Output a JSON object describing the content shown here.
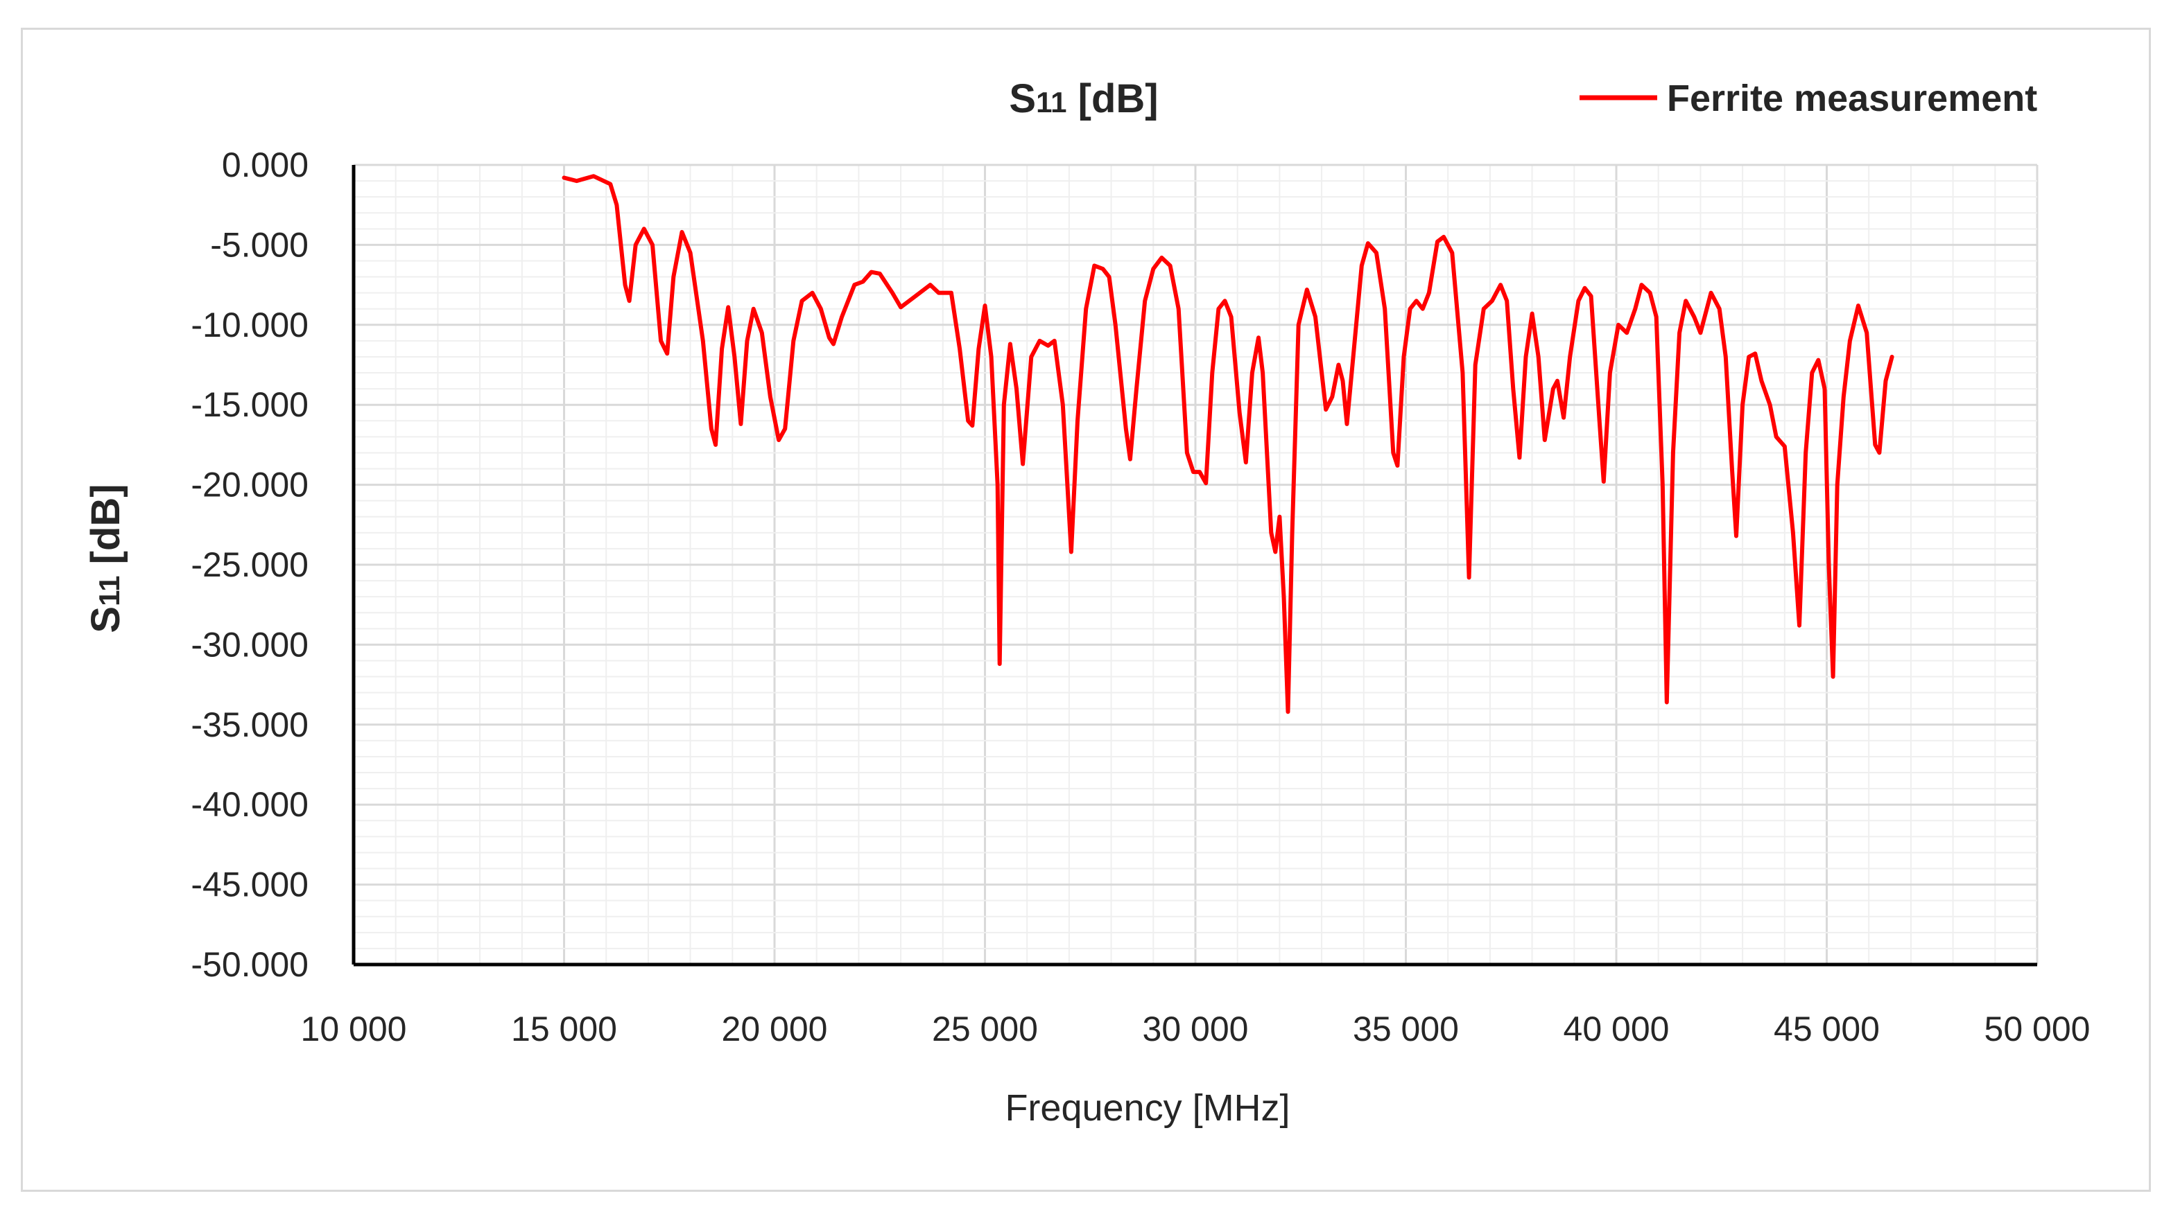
{
  "chart_data": {
    "type": "line",
    "title": "S11 [dB]",
    "title_main": "S",
    "title_sub": "11",
    "title_rest": " [dB]",
    "xlabel": "Frequency [MHz]",
    "ylabel": "S11 [dB]",
    "ylabel_main": "S",
    "ylabel_sub": "11",
    "ylabel_rest": " [dB]",
    "xlim": [
      10000,
      50000
    ],
    "ylim": [
      -50,
      0
    ],
    "x_ticks": [
      10000,
      15000,
      20000,
      25000,
      30000,
      35000,
      40000,
      45000,
      50000
    ],
    "x_tick_labels": [
      "10 000",
      "15 000",
      "20 000",
      "25 000",
      "30 000",
      "35 000",
      "40 000",
      "45 000",
      "50 000"
    ],
    "y_ticks": [
      0,
      -5,
      -10,
      -15,
      -20,
      -25,
      -30,
      -35,
      -40,
      -45,
      -50
    ],
    "y_tick_labels": [
      "0.000",
      "-5.000",
      "-10.000",
      "-15.000",
      "-20.000",
      "-25.000",
      "-30.000",
      "-35.000",
      "-40.000",
      "-45.000",
      "-50.000"
    ],
    "grid": true,
    "legend_position": "top-right",
    "series": [
      {
        "name": "Ferrite measurement",
        "color": "#ff0000",
        "points": [
          [
            15000,
            -0.8
          ],
          [
            15300,
            -1.0
          ],
          [
            15700,
            -0.7
          ],
          [
            16100,
            -1.2
          ],
          [
            16250,
            -2.5
          ],
          [
            16450,
            -7.5
          ],
          [
            16550,
            -8.5
          ],
          [
            16700,
            -5.0
          ],
          [
            16900,
            -4.0
          ],
          [
            17100,
            -5.0
          ],
          [
            17300,
            -11.0
          ],
          [
            17450,
            -11.8
          ],
          [
            17600,
            -7.0
          ],
          [
            17800,
            -4.2
          ],
          [
            18000,
            -5.5
          ],
          [
            18300,
            -11.0
          ],
          [
            18500,
            -16.5
          ],
          [
            18600,
            -17.5
          ],
          [
            18750,
            -11.5
          ],
          [
            18900,
            -8.9
          ],
          [
            19050,
            -12.0
          ],
          [
            19200,
            -16.2
          ],
          [
            19350,
            -11.0
          ],
          [
            19500,
            -9.0
          ],
          [
            19700,
            -10.5
          ],
          [
            19900,
            -14.5
          ],
          [
            20100,
            -17.2
          ],
          [
            20250,
            -16.5
          ],
          [
            20450,
            -11.0
          ],
          [
            20650,
            -8.5
          ],
          [
            20900,
            -8.0
          ],
          [
            21100,
            -9.0
          ],
          [
            21300,
            -10.8
          ],
          [
            21400,
            -11.2
          ],
          [
            21600,
            -9.5
          ],
          [
            21900,
            -7.5
          ],
          [
            22100,
            -7.3
          ],
          [
            22300,
            -6.7
          ],
          [
            22500,
            -6.8
          ],
          [
            22800,
            -8.0
          ],
          [
            23000,
            -8.9
          ],
          [
            23300,
            -8.3
          ],
          [
            23700,
            -7.5
          ],
          [
            23900,
            -8.0
          ],
          [
            24200,
            -8.0
          ],
          [
            24400,
            -11.5
          ],
          [
            24600,
            -16.0
          ],
          [
            24700,
            -16.3
          ],
          [
            24850,
            -11.5
          ],
          [
            25000,
            -8.8
          ],
          [
            25150,
            -12.0
          ],
          [
            25300,
            -20.0
          ],
          [
            25350,
            -31.2
          ],
          [
            25450,
            -15.0
          ],
          [
            25600,
            -11.2
          ],
          [
            25750,
            -14.0
          ],
          [
            25900,
            -18.7
          ],
          [
            26100,
            -12.0
          ],
          [
            26300,
            -11.0
          ],
          [
            26500,
            -11.3
          ],
          [
            26650,
            -11.0
          ],
          [
            26850,
            -15.0
          ],
          [
            27050,
            -24.2
          ],
          [
            27200,
            -16.0
          ],
          [
            27400,
            -9.0
          ],
          [
            27600,
            -6.3
          ],
          [
            27800,
            -6.5
          ],
          [
            27950,
            -7.0
          ],
          [
            28100,
            -10.0
          ],
          [
            28350,
            -16.5
          ],
          [
            28450,
            -18.4
          ],
          [
            28600,
            -14.0
          ],
          [
            28800,
            -8.5
          ],
          [
            29000,
            -6.5
          ],
          [
            29200,
            -5.8
          ],
          [
            29400,
            -6.3
          ],
          [
            29600,
            -9.0
          ],
          [
            29800,
            -18.0
          ],
          [
            29950,
            -19.2
          ],
          [
            30100,
            -19.2
          ],
          [
            30250,
            -19.9
          ],
          [
            30400,
            -13.0
          ],
          [
            30550,
            -9.0
          ],
          [
            30700,
            -8.5
          ],
          [
            30850,
            -9.5
          ],
          [
            31050,
            -15.5
          ],
          [
            31200,
            -18.6
          ],
          [
            31350,
            -13.0
          ],
          [
            31500,
            -10.8
          ],
          [
            31600,
            -13.0
          ],
          [
            31800,
            -23.0
          ],
          [
            31900,
            -24.2
          ],
          [
            32000,
            -22.0
          ],
          [
            32100,
            -27.0
          ],
          [
            32200,
            -34.2
          ],
          [
            32300,
            -23.0
          ],
          [
            32450,
            -10.0
          ],
          [
            32650,
            -7.8
          ],
          [
            32850,
            -9.5
          ],
          [
            33100,
            -15.3
          ],
          [
            33250,
            -14.5
          ],
          [
            33400,
            -12.5
          ],
          [
            33500,
            -13.5
          ],
          [
            33600,
            -16.2
          ],
          [
            33750,
            -12.0
          ],
          [
            33950,
            -6.3
          ],
          [
            34100,
            -4.9
          ],
          [
            34300,
            -5.5
          ],
          [
            34500,
            -9.0
          ],
          [
            34700,
            -18.0
          ],
          [
            34800,
            -18.8
          ],
          [
            34950,
            -12.0
          ],
          [
            35100,
            -9.0
          ],
          [
            35250,
            -8.5
          ],
          [
            35400,
            -9.0
          ],
          [
            35550,
            -8.0
          ],
          [
            35750,
            -4.8
          ],
          [
            35900,
            -4.5
          ],
          [
            36100,
            -5.5
          ],
          [
            36350,
            -13.0
          ],
          [
            36500,
            -25.8
          ],
          [
            36650,
            -12.5
          ],
          [
            36850,
            -9.0
          ],
          [
            37050,
            -8.5
          ],
          [
            37250,
            -7.5
          ],
          [
            37400,
            -8.5
          ],
          [
            37550,
            -14.0
          ],
          [
            37700,
            -18.3
          ],
          [
            37850,
            -12.0
          ],
          [
            38000,
            -9.3
          ],
          [
            38150,
            -12.0
          ],
          [
            38300,
            -17.2
          ],
          [
            38500,
            -14.0
          ],
          [
            38600,
            -13.5
          ],
          [
            38750,
            -15.8
          ],
          [
            38900,
            -12.0
          ],
          [
            39100,
            -8.5
          ],
          [
            39250,
            -7.7
          ],
          [
            39400,
            -8.2
          ],
          [
            39600,
            -16.0
          ],
          [
            39700,
            -19.8
          ],
          [
            39850,
            -13.0
          ],
          [
            40050,
            -10.0
          ],
          [
            40250,
            -10.5
          ],
          [
            40450,
            -9.0
          ],
          [
            40600,
            -7.5
          ],
          [
            40800,
            -8.0
          ],
          [
            40950,
            -9.5
          ],
          [
            41100,
            -20.0
          ],
          [
            41200,
            -33.6
          ],
          [
            41350,
            -18.0
          ],
          [
            41500,
            -10.5
          ],
          [
            41650,
            -8.5
          ],
          [
            41850,
            -9.5
          ],
          [
            42000,
            -10.5
          ],
          [
            42250,
            -8.0
          ],
          [
            42450,
            -9.0
          ],
          [
            42600,
            -12.0
          ],
          [
            42750,
            -19.0
          ],
          [
            42850,
            -23.2
          ],
          [
            43000,
            -15.0
          ],
          [
            43150,
            -12.0
          ],
          [
            43300,
            -11.8
          ],
          [
            43450,
            -13.5
          ],
          [
            43650,
            -15.0
          ],
          [
            43800,
            -17.0
          ],
          [
            44000,
            -17.6
          ],
          [
            44200,
            -23.0
          ],
          [
            44350,
            -28.8
          ],
          [
            44500,
            -18.0
          ],
          [
            44650,
            -13.0
          ],
          [
            44800,
            -12.2
          ],
          [
            44950,
            -14.0
          ],
          [
            45050,
            -25.0
          ],
          [
            45150,
            -32.0
          ],
          [
            45250,
            -20.0
          ],
          [
            45400,
            -14.5
          ],
          [
            45550,
            -11.0
          ],
          [
            45750,
            -8.8
          ],
          [
            45950,
            -10.5
          ],
          [
            46150,
            -17.5
          ],
          [
            46250,
            -18.0
          ],
          [
            46400,
            -13.5
          ],
          [
            46550,
            -12.0
          ]
        ]
      }
    ]
  }
}
